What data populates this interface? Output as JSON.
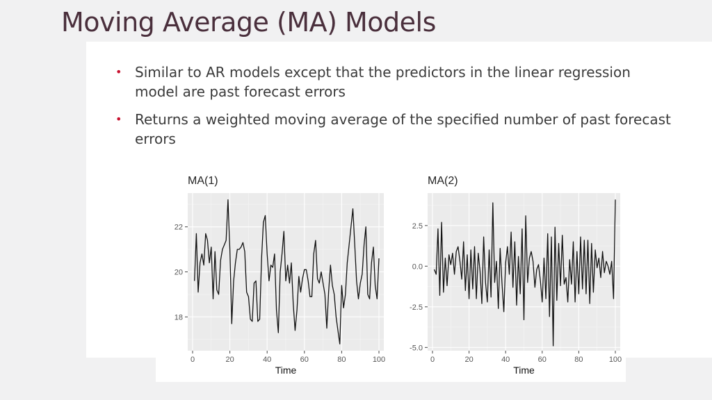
{
  "slide": {
    "title": "Moving Average (MA) Models",
    "bullets": [
      "Similar to AR models except that the predictors in the linear regression model are past forecast errors",
      "Returns a weighted moving average of the specified number of past forecast errors"
    ],
    "bullet_color": "#c8102e"
  },
  "chart_data": [
    {
      "type": "line",
      "title": "MA(1)",
      "xlabel": "Time",
      "ylabel": "",
      "xlim": [
        0,
        100
      ],
      "ylim": [
        16.5,
        23.5
      ],
      "xticks": [
        0,
        20,
        40,
        60,
        80,
        100
      ],
      "yticks": [
        18,
        20,
        22
      ],
      "ytick_labels": [
        "18",
        "20",
        "22"
      ],
      "grid": true,
      "x": [
        1,
        2,
        3,
        4,
        5,
        6,
        7,
        8,
        9,
        10,
        11,
        12,
        13,
        14,
        15,
        16,
        17,
        18,
        19,
        20,
        21,
        22,
        23,
        24,
        25,
        26,
        27,
        28,
        29,
        30,
        31,
        32,
        33,
        34,
        35,
        36,
        37,
        38,
        39,
        40,
        41,
        42,
        43,
        44,
        45,
        46,
        47,
        48,
        49,
        50,
        51,
        52,
        53,
        54,
        55,
        56,
        57,
        58,
        59,
        60,
        61,
        62,
        63,
        64,
        65,
        66,
        67,
        68,
        69,
        70,
        71,
        72,
        73,
        74,
        75,
        76,
        77,
        78,
        79,
        80,
        81,
        82,
        83,
        84,
        85,
        86,
        87,
        88,
        89,
        90,
        91,
        92,
        93,
        94,
        95,
        96,
        97,
        98,
        99,
        100
      ],
      "values": [
        19.6,
        21.7,
        19.1,
        20.4,
        20.8,
        20.3,
        21.7,
        21.4,
        20.4,
        21.1,
        18.8,
        20.9,
        19.2,
        19.0,
        20.5,
        21.0,
        21.2,
        21.4,
        23.2,
        21.0,
        17.7,
        19.6,
        20.4,
        21.0,
        21.0,
        21.1,
        21.3,
        20.9,
        19.1,
        18.9,
        17.9,
        17.8,
        19.5,
        19.6,
        17.8,
        17.9,
        20.6,
        22.2,
        22.5,
        20.8,
        19.6,
        20.3,
        20.2,
        20.8,
        18.3,
        17.3,
        20.0,
        20.8,
        21.8,
        19.6,
        20.3,
        19.5,
        20.4,
        18.6,
        17.4,
        18.3,
        19.8,
        19.1,
        19.7,
        20.1,
        20.1,
        19.6,
        18.9,
        18.9,
        20.8,
        21.4,
        19.7,
        19.5,
        20.0,
        19.5,
        19.0,
        17.5,
        19.1,
        20.3,
        19.4,
        19.0,
        18.0,
        17.4,
        16.8,
        19.4,
        18.4,
        19.0,
        20.4,
        21.2,
        22.0,
        22.8,
        21.2,
        19.6,
        18.8,
        19.5,
        19.9,
        21.2,
        22.0,
        19.0,
        18.8,
        20.4,
        21.1,
        19.4,
        18.8,
        20.6
      ]
    },
    {
      "type": "line",
      "title": "MA(2)",
      "xlabel": "Time",
      "ylabel": "",
      "xlim": [
        0,
        100
      ],
      "ylim": [
        -5.2,
        4.5
      ],
      "xticks": [
        0,
        20,
        40,
        60,
        80,
        100
      ],
      "yticks": [
        -5.0,
        -2.5,
        0.0,
        2.5
      ],
      "ytick_labels": [
        "-5.0",
        "-2.5",
        "0.0",
        "2.5"
      ],
      "grid": true,
      "x": [
        1,
        2,
        3,
        4,
        5,
        6,
        7,
        8,
        9,
        10,
        11,
        12,
        13,
        14,
        15,
        16,
        17,
        18,
        19,
        20,
        21,
        22,
        23,
        24,
        25,
        26,
        27,
        28,
        29,
        30,
        31,
        32,
        33,
        34,
        35,
        36,
        37,
        38,
        39,
        40,
        41,
        42,
        43,
        44,
        45,
        46,
        47,
        48,
        49,
        50,
        51,
        52,
        53,
        54,
        55,
        56,
        57,
        58,
        59,
        60,
        61,
        62,
        63,
        64,
        65,
        66,
        67,
        68,
        69,
        70,
        71,
        72,
        73,
        74,
        75,
        76,
        77,
        78,
        79,
        80,
        81,
        82,
        83,
        84,
        85,
        86,
        87,
        88,
        89,
        90,
        91,
        92,
        93,
        94,
        95,
        96,
        97,
        98,
        99,
        100
      ],
      "values": [
        -0.2,
        -0.5,
        2.3,
        -1.8,
        2.7,
        -1.6,
        0.5,
        -1.2,
        0.7,
        0.1,
        0.8,
        -0.5,
        0.9,
        1.2,
        0.3,
        -0.8,
        1.5,
        -1.5,
        0.7,
        -2.0,
        1.0,
        -1.4,
        1.2,
        -2.0,
        0.8,
        -0.3,
        -2.3,
        1.8,
        -1.0,
        -2.2,
        1.0,
        -1.9,
        3.9,
        -1.0,
        0.3,
        -2.6,
        1.1,
        -1.0,
        -2.8,
        0.2,
        1.2,
        -0.5,
        2.1,
        -1.3,
        1.5,
        -2.4,
        0.6,
        -1.7,
        2.3,
        -3.3,
        3.1,
        -1.0,
        0.5,
        0.9,
        0.3,
        -1.3,
        -0.2,
        0.1,
        -0.9,
        -2.2,
        0.5,
        -2.0,
        2.0,
        -3.1,
        1.8,
        -4.9,
        2.4,
        -2.1,
        1.4,
        -1.2,
        1.9,
        -1.1,
        -0.7,
        -2.2,
        0.4,
        -1.1,
        1.5,
        -2.2,
        0.9,
        -1.7,
        1.8,
        -1.4,
        1.6,
        -1.7,
        1.6,
        -2.3,
        1.4,
        -1.6,
        1.0,
        -0.1,
        0.5,
        -0.7,
        0.9,
        -0.4,
        0.3,
        0.0,
        -0.5,
        0.3,
        -2.0,
        4.1
      ]
    }
  ]
}
